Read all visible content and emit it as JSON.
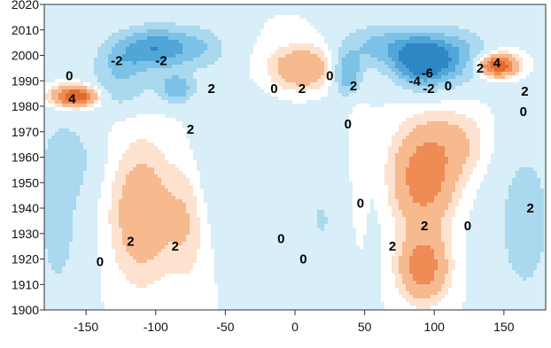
{
  "chart_data": {
    "type": "heatmap",
    "title": "",
    "xlabel": "",
    "ylabel": "",
    "xlim": [
      -180,
      180
    ],
    "ylim": [
      1900,
      2020
    ],
    "x_ticks": [
      -150,
      -100,
      -50,
      0,
      50,
      100,
      150
    ],
    "x_tick_labels": [
      "-150",
      "-100",
      "-50",
      "0",
      "50",
      "100",
      "150"
    ],
    "y_ticks": [
      1900,
      1910,
      1920,
      1930,
      1940,
      1950,
      1960,
      1970,
      1980,
      1990,
      2000,
      2010,
      2020
    ],
    "y_tick_labels": [
      "1900",
      "1910",
      "1920",
      "1930",
      "1940",
      "1950",
      "1960",
      "1970",
      "1980",
      "1990",
      "2000",
      "2010",
      "2020"
    ],
    "colors": {
      "neg_levels": [
        "#d8eef8",
        "#a9d8ef",
        "#7cc2e6",
        "#4fa6d7",
        "#2f86c4"
      ],
      "zero": "#ffffff",
      "pos_levels": [
        "#fde3cf",
        "#f7b98e",
        "#ef8c55",
        "#e46a2a"
      ],
      "contour_line": "#9a3a4a"
    },
    "features": [
      {
        "lon": -157,
        "year": 1984,
        "amp": 4.6,
        "sx": 12,
        "sy": 3
      },
      {
        "lon": -100,
        "year": 2003,
        "amp": -3.4,
        "sx": 15,
        "sy": 6
      },
      {
        "lon": -85,
        "year": 1987,
        "amp": -2.8,
        "sx": 9,
        "sy": 4
      },
      {
        "lon": -125,
        "year": 1998,
        "amp": -2.2,
        "sx": 14,
        "sy": 7
      },
      {
        "lon": -70,
        "year": 2003,
        "amp": -2.0,
        "sx": 15,
        "sy": 6
      },
      {
        "lon": -130,
        "year": 1985,
        "amp": -1.3,
        "sx": 18,
        "sy": 5
      },
      {
        "lon": 92,
        "year": 1998,
        "amp": -5.5,
        "sx": 15,
        "sy": 7
      },
      {
        "lon": 38,
        "year": 1993,
        "amp": -3.0,
        "sx": 7,
        "sy": 6
      },
      {
        "lon": 120,
        "year": 2000,
        "amp": -2.0,
        "sx": 14,
        "sy": 8
      },
      {
        "lon": 60,
        "year": 2004,
        "amp": -2.2,
        "sx": 18,
        "sy": 6
      },
      {
        "lon": 145,
        "year": 1996,
        "amp": 4.3,
        "sx": 10,
        "sy": 3
      },
      {
        "lon": 5,
        "year": 1995,
        "amp": 2.0,
        "sx": 16,
        "sy": 6
      },
      {
        "lon": -110,
        "year": 1938,
        "amp": 1.8,
        "sx": 15,
        "sy": 18
      },
      {
        "lon": -78,
        "year": 1935,
        "amp": 1.0,
        "sx": 10,
        "sy": 16
      },
      {
        "lon": 92,
        "year": 1950,
        "amp": 2.5,
        "sx": 15,
        "sy": 12
      },
      {
        "lon": 92,
        "year": 1917,
        "amp": 2.7,
        "sx": 12,
        "sy": 9
      },
      {
        "lon": 110,
        "year": 1965,
        "amp": 1.2,
        "sx": 22,
        "sy": 10
      },
      {
        "lon": -170,
        "year": 1935,
        "amp": -1.3,
        "sx": 14,
        "sy": 28
      },
      {
        "lon": 165,
        "year": 1935,
        "amp": -1.4,
        "sx": 18,
        "sy": 28
      },
      {
        "lon": 20,
        "year": 1935,
        "amp": -1.0,
        "sx": 20,
        "sy": 25
      },
      {
        "lon": -40,
        "year": 1955,
        "amp": -0.9,
        "sx": 22,
        "sy": 18
      },
      {
        "lon": 45,
        "year": 1950,
        "amp": 0.8,
        "sx": 5,
        "sy": 22
      },
      {
        "lon": -160,
        "year": 1960,
        "amp": -0.9,
        "sx": 14,
        "sy": 10
      }
    ],
    "contour_labels": [
      {
        "text": "-2",
        "lon": -128,
        "year": 1998
      },
      {
        "text": "-2",
        "lon": -96,
        "year": 1998
      },
      {
        "text": "2",
        "lon": -60,
        "year": 1987
      },
      {
        "text": "0",
        "lon": -162,
        "year": 1992
      },
      {
        "text": "4",
        "lon": -160,
        "year": 1983
      },
      {
        "text": "0",
        "lon": -15,
        "year": 1987
      },
      {
        "text": "2",
        "lon": 5,
        "year": 1987
      },
      {
        "text": "0",
        "lon": 25,
        "year": 1992
      },
      {
        "text": "2",
        "lon": 42,
        "year": 1988
      },
      {
        "text": "0",
        "lon": 38,
        "year": 1973
      },
      {
        "text": "-4",
        "lon": 86,
        "year": 1990
      },
      {
        "text": "-6",
        "lon": 95,
        "year": 1993
      },
      {
        "text": "-2",
        "lon": 96,
        "year": 1987
      },
      {
        "text": "0",
        "lon": 110,
        "year": 1988
      },
      {
        "text": "2",
        "lon": 133,
        "year": 1995
      },
      {
        "text": "4",
        "lon": 145,
        "year": 1997
      },
      {
        "text": "2",
        "lon": 165,
        "year": 1986
      },
      {
        "text": "0",
        "lon": 164,
        "year": 1978
      },
      {
        "text": "2",
        "lon": -75,
        "year": 1971
      },
      {
        "text": "0",
        "lon": 47,
        "year": 1942
      },
      {
        "text": "0",
        "lon": 124,
        "year": 1933
      },
      {
        "text": "2",
        "lon": 93,
        "year": 1933
      },
      {
        "text": "2",
        "lon": 169,
        "year": 1940
      },
      {
        "text": "0",
        "lon": -10,
        "year": 1928
      },
      {
        "text": "2",
        "lon": -118,
        "year": 1927
      },
      {
        "text": "2",
        "lon": -86,
        "year": 1925
      },
      {
        "text": "2",
        "lon": 70,
        "year": 1925
      },
      {
        "text": "0",
        "lon": -140,
        "year": 1919
      },
      {
        "text": "0",
        "lon": 6,
        "year": 1920
      }
    ],
    "grid": false,
    "legend": "none"
  }
}
